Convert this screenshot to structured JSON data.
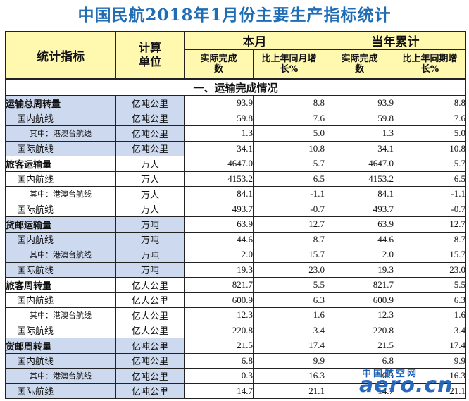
{
  "title": "中国民航2018年1月份主要生产指标统计",
  "header": {
    "indicator": "统计指标",
    "unit": "计算单位",
    "this_month": "本月",
    "ytd": "当年累计",
    "actual": "实际完成数",
    "yoy_month": "比上年同月增长%",
    "yoy_period": "比上年同期增长%"
  },
  "section_title": "一、运输完成情况",
  "rows": [
    {
      "name": "运输总周转量",
      "unit": "亿吨公里",
      "month": "93.9",
      "month_growth": "8.8",
      "ytd": "93.9",
      "ytd_growth": "8.8"
    },
    {
      "name": "国内航线",
      "unit": "亿吨公里",
      "month": "59.8",
      "month_growth": "7.6",
      "ytd": "59.8",
      "ytd_growth": "7.6"
    },
    {
      "name": "其中：港澳台航线",
      "unit": "亿吨公里",
      "month": "1.3",
      "month_growth": "5.0",
      "ytd": "1.3",
      "ytd_growth": "5.0"
    },
    {
      "name": "国际航线",
      "unit": "亿吨公里",
      "month": "34.1",
      "month_growth": "10.8",
      "ytd": "34.1",
      "ytd_growth": "10.8"
    },
    {
      "name": "旅客运输量",
      "unit": "万人",
      "month": "4647.0",
      "month_growth": "5.7",
      "ytd": "4647.0",
      "ytd_growth": "5.7"
    },
    {
      "name": "国内航线",
      "unit": "万人",
      "month": "4153.2",
      "month_growth": "6.5",
      "ytd": "4153.2",
      "ytd_growth": "6.5"
    },
    {
      "name": "其中：港澳台航线",
      "unit": "万人",
      "month": "84.1",
      "month_growth": "-1.1",
      "ytd": "84.1",
      "ytd_growth": "-1.1"
    },
    {
      "name": "国际航线",
      "unit": "万人",
      "month": "493.7",
      "month_growth": "-0.7",
      "ytd": "493.7",
      "ytd_growth": "-0.7"
    },
    {
      "name": "货邮运输量",
      "unit": "万吨",
      "month": "63.9",
      "month_growth": "12.7",
      "ytd": "63.9",
      "ytd_growth": "12.7"
    },
    {
      "name": "国内航线",
      "unit": "万吨",
      "month": "44.6",
      "month_growth": "8.7",
      "ytd": "44.6",
      "ytd_growth": "8.7"
    },
    {
      "name": "其中：港澳台航线",
      "unit": "万吨",
      "month": "2.0",
      "month_growth": "15.7",
      "ytd": "2.0",
      "ytd_growth": "15.7"
    },
    {
      "name": "国际航线",
      "unit": "万吨",
      "month": "19.3",
      "month_growth": "23.0",
      "ytd": "19.3",
      "ytd_growth": "23.0"
    },
    {
      "name": "旅客周转量",
      "unit": "亿人公里",
      "month": "821.7",
      "month_growth": "5.5",
      "ytd": "821.7",
      "ytd_growth": "5.5"
    },
    {
      "name": "国内航线",
      "unit": "亿人公里",
      "month": "600.9",
      "month_growth": "6.3",
      "ytd": "600.9",
      "ytd_growth": "6.3"
    },
    {
      "name": "其中：港澳台航线",
      "unit": "亿人公里",
      "month": "12.3",
      "month_growth": "1.6",
      "ytd": "12.3",
      "ytd_growth": "1.6"
    },
    {
      "name": "国际航线",
      "unit": "亿人公里",
      "month": "220.8",
      "month_growth": "3.4",
      "ytd": "220.8",
      "ytd_growth": "3.4"
    },
    {
      "name": "货邮周转量",
      "unit": "亿吨公里",
      "month": "21.5",
      "month_growth": "17.4",
      "ytd": "21.5",
      "ytd_growth": "17.4"
    },
    {
      "name": "国内航线",
      "unit": "亿吨公里",
      "month": "6.8",
      "month_growth": "9.9",
      "ytd": "6.8",
      "ytd_growth": "9.9"
    },
    {
      "name": "其中：港澳台航线",
      "unit": "亿吨公里",
      "month": "0.3",
      "month_growth": "16.3",
      "ytd": "0.3",
      "ytd_growth": "16.3"
    },
    {
      "name": "国际航线",
      "unit": "亿吨公里",
      "month": "14.7",
      "month_growth": "21.1",
      "ytd": "14.7",
      "ytd_growth": "21.1"
    }
  ],
  "watermark": {
    "cn": "中国航空网",
    "en": "aero.cn"
  }
}
